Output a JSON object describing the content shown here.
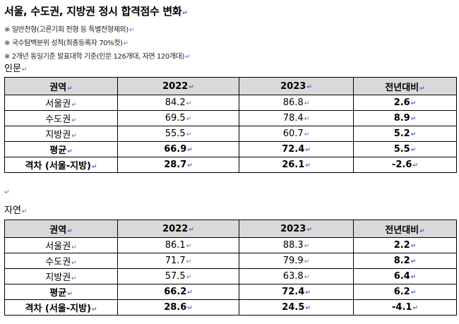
{
  "title": "서울, 수도권, 지방권 정시 합격점수 변화",
  "notes": [
    "※ 일반전형(고른기회 전형 등 특별전형제외)",
    "※ 국수탐백분위 성적(최종등록자 70%컷)",
    "※ 2개년 동일기준 발표대학 기준(인문 126개대, 자연 120개대)"
  ],
  "section_humanities": "인문",
  "section_natural": "자연",
  "headers": [
    "권역",
    "2022",
    "2023",
    "전년대비"
  ],
  "humanities_rows": [
    {
      "region": "서울권",
      "y2022": "84.2",
      "y2023": "86.8",
      "diff": "2.6"
    },
    {
      "region": "수도권",
      "y2022": "69.5",
      "y2023": "78.4",
      "diff": "8.9"
    },
    {
      "region": "지방권",
      "y2022": "55.5",
      "y2023": "60.7",
      "diff": "5.2"
    },
    {
      "region": "평균",
      "y2022": "66.9",
      "y2023": "72.4",
      "diff": "5.5"
    },
    {
      "region": "격차 (서울-지방)",
      "y2022": "28.7",
      "y2023": "26.1",
      "diff": "-2.6"
    }
  ],
  "natural_rows": [
    {
      "region": "서울권",
      "y2022": "86.1",
      "y2023": "88.3",
      "diff": "2.2"
    },
    {
      "region": "수도권",
      "y2022": "71.7",
      "y2023": "79.9",
      "diff": "8.2"
    },
    {
      "region": "지방권",
      "y2022": "57.5",
      "y2023": "63.8",
      "diff": "6.4"
    },
    {
      "region": "평균",
      "y2022": "66.2",
      "y2023": "72.4",
      "diff": "6.2"
    },
    {
      "region": "격차 (서울-지방)",
      "y2022": "28.6",
      "y2023": "24.5",
      "diff": "-4.1"
    }
  ],
  "paragraph_mark": "↵"
}
